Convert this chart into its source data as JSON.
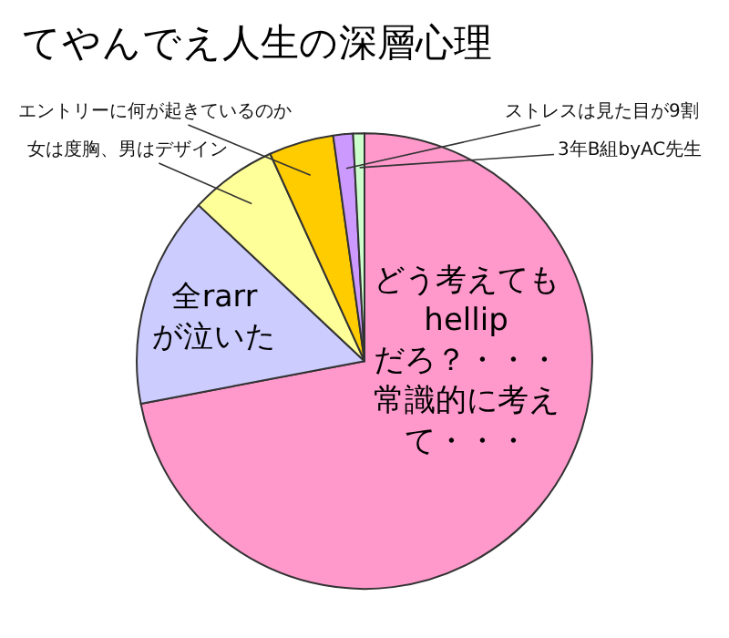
{
  "chart_data": {
    "type": "pie",
    "title": "てやんでえ人生の深層心理",
    "categories": [
      "どう考えてもhellipだろ？・・・常識的に考えて・・・",
      "全rarrが泣いた",
      "女は度胸、男はデザイン",
      "エントリーに何が起きているのか",
      "ストレスは見た目が9割",
      "3年B組byAC先生"
    ],
    "values": [
      72,
      15,
      6.2,
      4.6,
      1.4,
      0.8
    ],
    "colors": [
      "#ff99cc",
      "#ccccff",
      "#ffff99",
      "#ffcc00",
      "#cc99ff",
      "#ccffcc"
    ],
    "legend": false
  }
}
